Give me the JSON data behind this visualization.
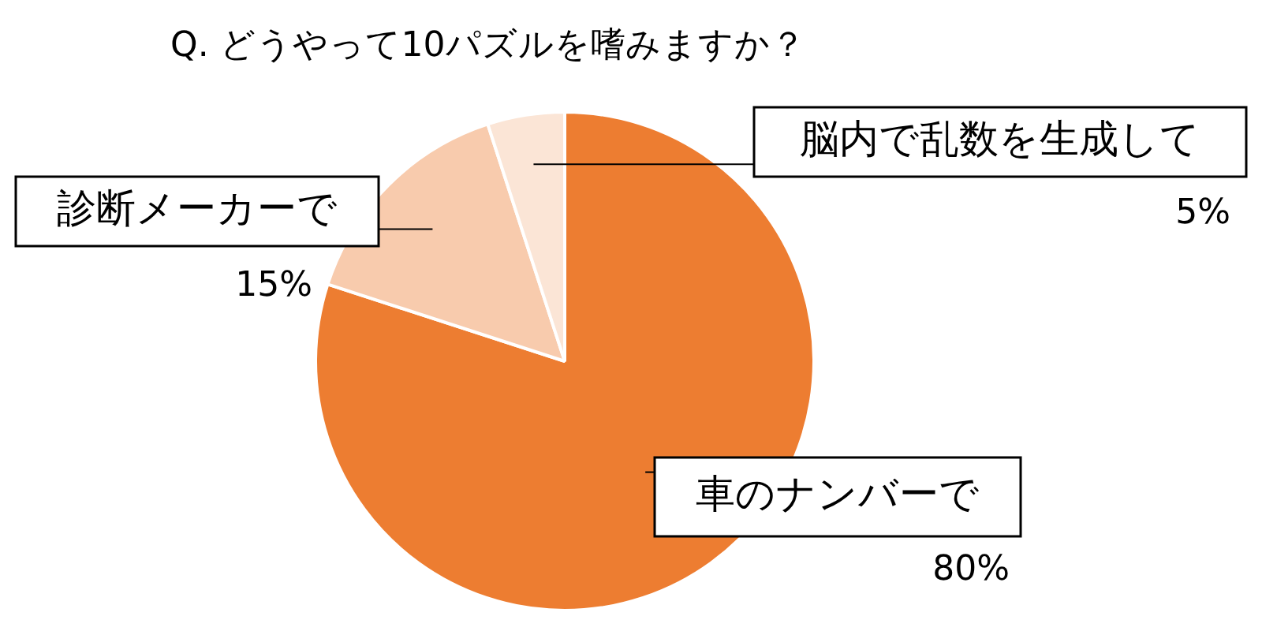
{
  "chart_data": {
    "type": "pie",
    "title": "Q. どうやって10パズルを嗜みますか？",
    "categories": [
      "車のナンバーで",
      "診断メーカーで",
      "脳内で乱数を生成して"
    ],
    "values": [
      80,
      15,
      5
    ],
    "colors": [
      "#ed7d31",
      "#f8cbad",
      "#fbe5d6"
    ],
    "value_labels": [
      "80%",
      "15%",
      "5%"
    ],
    "legend": false
  }
}
